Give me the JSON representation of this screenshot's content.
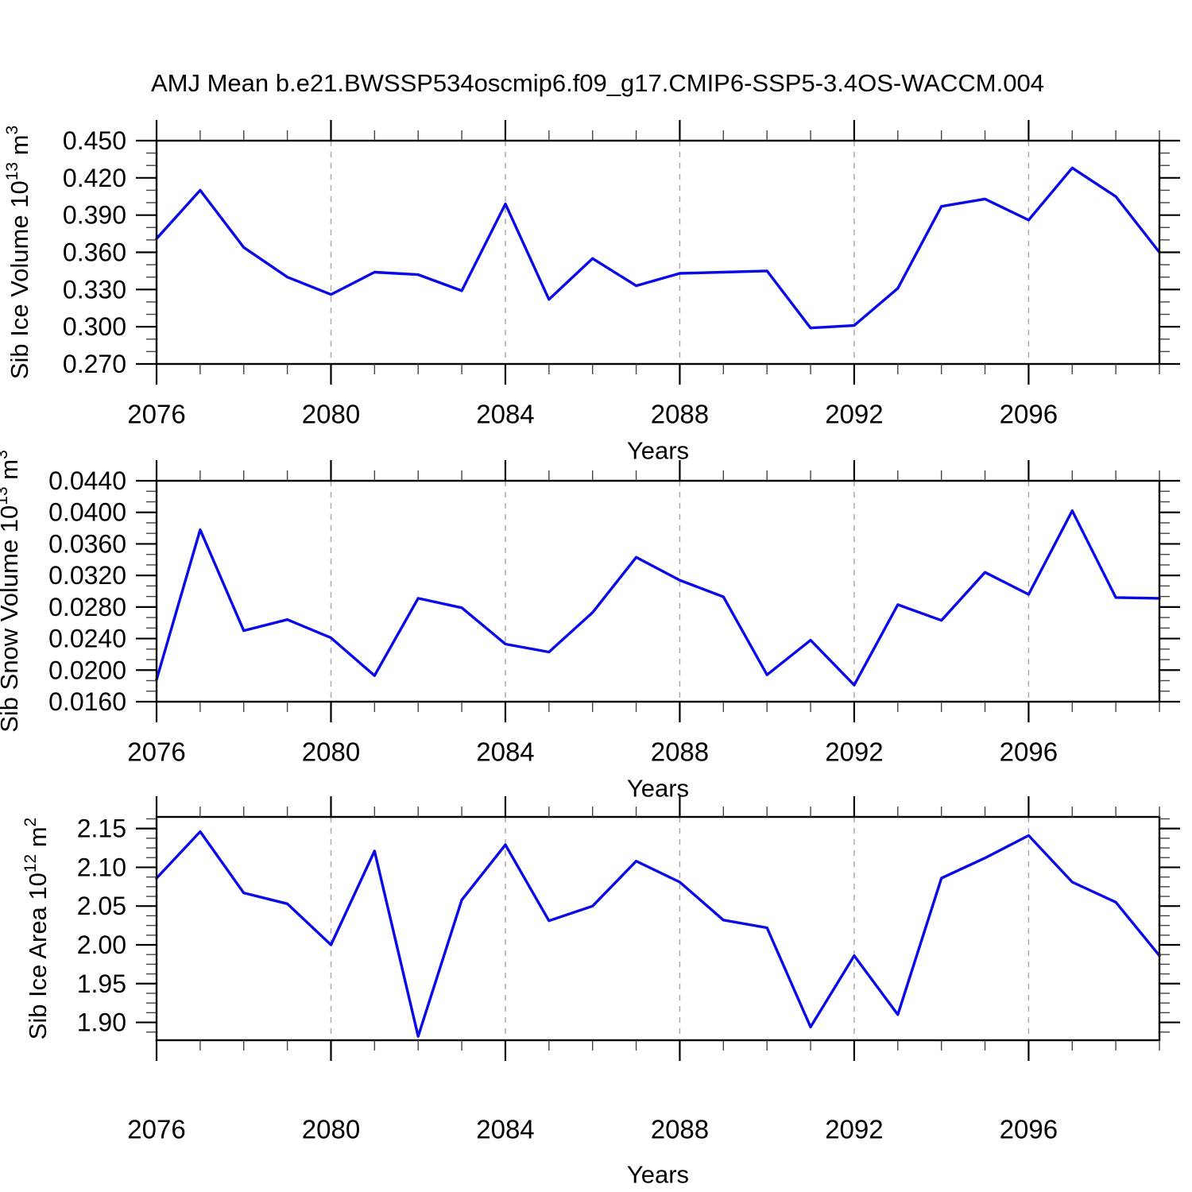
{
  "title": "AMJ Mean b.e21.BWSSP534oscmip6.f09_g17.CMIP6-SSP5-3.4OS-WACCM.004",
  "style": {
    "line_color": "#0808E8",
    "grid_color": "#A6A6A6",
    "axis_color": "#000000",
    "minor_tick_color": "#444444"
  },
  "x_axis": {
    "label": "Years",
    "range": [
      2076,
      2099
    ],
    "minor_step": 1,
    "major_ticks": [
      {
        "value": 2076,
        "label": "2076"
      },
      {
        "value": 2080,
        "label": "2080"
      },
      {
        "value": 2084,
        "label": "2084"
      },
      {
        "value": 2088,
        "label": "2088"
      },
      {
        "value": 2092,
        "label": "2092"
      },
      {
        "value": 2096,
        "label": "2096"
      }
    ],
    "grid_years": [
      2080,
      2084,
      2088,
      2092,
      2096
    ]
  },
  "chart_data": [
    {
      "type": "line",
      "name": "sib-ice-volume",
      "ylabel": "Sib Ice Volume 10^13 m^3",
      "ylim": [
        0.27,
        0.45
      ],
      "y_minor_divisions": 3,
      "y_major_ticks": [
        {
          "value": 0.27,
          "label": "0.270"
        },
        {
          "value": 0.3,
          "label": "0.300"
        },
        {
          "value": 0.33,
          "label": "0.330"
        },
        {
          "value": 0.36,
          "label": "0.360"
        },
        {
          "value": 0.39,
          "label": "0.390"
        },
        {
          "value": 0.42,
          "label": "0.420"
        },
        {
          "value": 0.45,
          "label": "0.450"
        }
      ],
      "x": [
        2076,
        2077,
        2078,
        2079,
        2080,
        2081,
        2082,
        2083,
        2084,
        2085,
        2086,
        2087,
        2088,
        2089,
        2090,
        2091,
        2092,
        2093,
        2094,
        2095,
        2096,
        2097,
        2098,
        2099
      ],
      "values": [
        0.371,
        0.41,
        0.364,
        0.34,
        0.326,
        0.344,
        0.342,
        0.329,
        0.399,
        0.322,
        0.355,
        0.333,
        0.343,
        0.344,
        0.345,
        0.299,
        0.301,
        0.331,
        0.397,
        0.403,
        0.386,
        0.428,
        0.405,
        0.36
      ]
    },
    {
      "type": "line",
      "name": "sib-snow-volume",
      "ylabel": "Sib Snow Volume 10^13 m^3",
      "ylim": [
        0.016,
        0.044
      ],
      "y_minor_divisions": 3,
      "y_major_ticks": [
        {
          "value": 0.016,
          "label": "0.0160"
        },
        {
          "value": 0.02,
          "label": "0.0200"
        },
        {
          "value": 0.024,
          "label": "0.0240"
        },
        {
          "value": 0.028,
          "label": "0.0280"
        },
        {
          "value": 0.032,
          "label": "0.0320"
        },
        {
          "value": 0.036,
          "label": "0.0360"
        },
        {
          "value": 0.04,
          "label": "0.0400"
        },
        {
          "value": 0.044,
          "label": "0.0440"
        }
      ],
      "x": [
        2076,
        2077,
        2078,
        2079,
        2080,
        2081,
        2082,
        2083,
        2084,
        2085,
        2086,
        2087,
        2088,
        2089,
        2090,
        2091,
        2092,
        2093,
        2094,
        2095,
        2096,
        2097,
        2098,
        2099
      ],
      "values": [
        0.0188,
        0.0378,
        0.025,
        0.0264,
        0.0241,
        0.0193,
        0.0291,
        0.0279,
        0.0233,
        0.0223,
        0.0273,
        0.0343,
        0.0314,
        0.0293,
        0.0194,
        0.0238,
        0.0181,
        0.0283,
        0.0263,
        0.0324,
        0.0296,
        0.0402,
        0.0292,
        0.0291
      ]
    },
    {
      "type": "line",
      "name": "sib-ice-area",
      "ylabel": "Sib Ice Area 10^12 m^2",
      "ylim": [
        1.877,
        2.165
      ],
      "y_minor_divisions": 4,
      "y_major_ticks": [
        {
          "value": 1.9,
          "label": "1.90"
        },
        {
          "value": 1.95,
          "label": "1.95"
        },
        {
          "value": 2.0,
          "label": "2.00"
        },
        {
          "value": 2.05,
          "label": "2.05"
        },
        {
          "value": 2.1,
          "label": "2.10"
        },
        {
          "value": 2.15,
          "label": "2.15"
        }
      ],
      "x": [
        2076,
        2077,
        2078,
        2079,
        2080,
        2081,
        2082,
        2083,
        2084,
        2085,
        2086,
        2087,
        2088,
        2089,
        2090,
        2091,
        2092,
        2093,
        2094,
        2095,
        2096,
        2097,
        2098,
        2099
      ],
      "values": [
        2.086,
        2.146,
        2.067,
        2.053,
        2.0,
        2.121,
        1.882,
        2.058,
        2.129,
        2.031,
        2.05,
        2.108,
        2.081,
        2.032,
        2.022,
        1.894,
        1.986,
        1.91,
        2.086,
        2.112,
        2.141,
        2.081,
        2.055,
        1.986
      ]
    }
  ]
}
